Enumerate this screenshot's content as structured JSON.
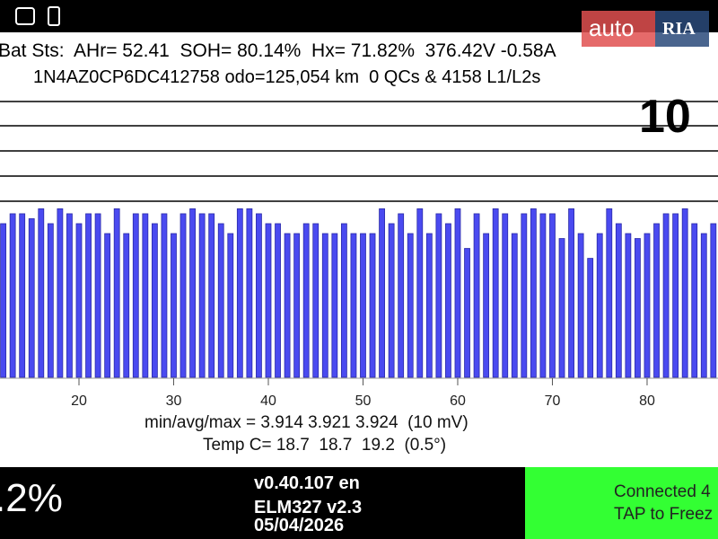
{
  "header": {
    "line1": "Bat Sts:  AHr= 52.41  SOH= 80.14%  Hx= 71.82%  376.42V -0.58A",
    "line2": "1N4AZ0CP6DC412758 odo=125,054 km  0 QCs & 4158 L1/L2s",
    "scale": "10"
  },
  "watermark": {
    "brand": "auto",
    "badge": "RIA"
  },
  "chart_data": {
    "type": "bar",
    "x": [
      12,
      13,
      14,
      15,
      16,
      17,
      18,
      19,
      20,
      21,
      22,
      23,
      24,
      25,
      26,
      27,
      28,
      29,
      30,
      31,
      32,
      33,
      34,
      35,
      36,
      37,
      38,
      39,
      40,
      41,
      42,
      43,
      44,
      45,
      46,
      47,
      48,
      49,
      50,
      51,
      52,
      53,
      54,
      55,
      56,
      57,
      58,
      59,
      60,
      61,
      62,
      63,
      64,
      65,
      66,
      67,
      68,
      69,
      70,
      71,
      72,
      73,
      74,
      75,
      76,
      77,
      78,
      79,
      80,
      81,
      82,
      83,
      84,
      85,
      86,
      87
    ],
    "values": [
      3.921,
      3.923,
      3.923,
      3.922,
      3.924,
      3.921,
      3.924,
      3.923,
      3.921,
      3.923,
      3.923,
      3.919,
      3.924,
      3.919,
      3.923,
      3.923,
      3.921,
      3.923,
      3.919,
      3.923,
      3.924,
      3.923,
      3.923,
      3.921,
      3.919,
      3.924,
      3.924,
      3.923,
      3.921,
      3.921,
      3.919,
      3.919,
      3.921,
      3.921,
      3.919,
      3.919,
      3.921,
      3.919,
      3.919,
      3.919,
      3.924,
      3.921,
      3.923,
      3.919,
      3.924,
      3.919,
      3.923,
      3.921,
      3.924,
      3.916,
      3.923,
      3.919,
      3.924,
      3.923,
      3.919,
      3.923,
      3.924,
      3.923,
      3.923,
      3.918,
      3.924,
      3.919,
      3.914,
      3.919,
      3.924,
      3.921,
      3.919,
      3.918,
      3.919,
      3.921,
      3.923,
      3.923,
      3.924,
      3.921,
      3.919,
      3.921
    ],
    "color": "#4a4af0",
    "xlim": [
      11.66,
      87.49
    ],
    "ylim": [
      3.89,
      3.948
    ],
    "xticks": [
      20,
      30,
      40,
      50,
      60,
      70,
      80
    ]
  },
  "stats": {
    "voltage": "min/avg/max = 3.914 3.921 3.924  (10 mV)",
    "temperature": "Temp C= 18.7  18.7  19.2  (0.5°)"
  },
  "footer": {
    "soc": ".2%",
    "version": "v0.40.107 en",
    "adapter": "ELM327 v2.3",
    "date": "05/04/2026",
    "status": "Connected 4",
    "action": "TAP to Freez"
  }
}
